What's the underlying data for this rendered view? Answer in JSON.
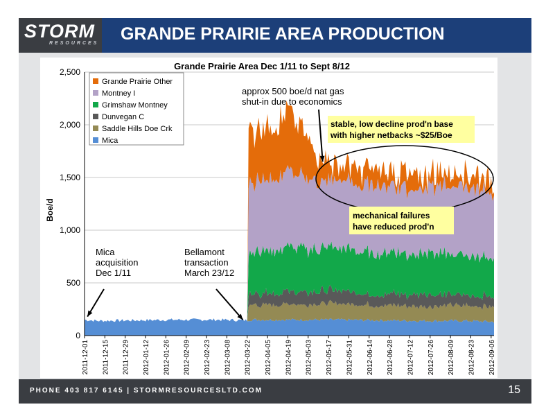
{
  "header": {
    "logo_text": "STORM",
    "logo_sub": "RESOURCES",
    "title": "GRANDE PRAIRIE AREA PRODUCTION"
  },
  "footer": {
    "text": "PHONE 403 817 6145   |   STORMRESOURCESLTD.COM",
    "page_number": "15"
  },
  "colors": {
    "title_bar": "#1c3f79",
    "dark_bar": "#3a3d42",
    "Grande Prairie Other": "#e46c0a",
    "Montney I": "#b3a2c7",
    "Grimshaw Montney": "#12a84a",
    "Dunvegan C": "#595959",
    "Saddle Hills Doe Crk": "#948a54",
    "Mica": "#558ed5"
  },
  "chart_data": {
    "type": "area",
    "stacked": true,
    "title": "Grande Prairie Area Dec 1/11 to Sept 8/12",
    "ylabel": "Boe/d",
    "xlabel": "",
    "ylim": [
      0,
      2500
    ],
    "yticks": [
      "0",
      "500",
      "1,000",
      "1,500",
      "2,000",
      "2,500"
    ],
    "xtick_labels": [
      "2011-12-01",
      "2011-12-15",
      "2011-12-29",
      "2012-01-12",
      "2012-01-26",
      "2012-02-09",
      "2012-02-23",
      "2012-03-08",
      "2012-03-22",
      "2012-04-05",
      "2012-04-19",
      "2012-05-03",
      "2012-05-17",
      "2012-05-31",
      "2012-06-14",
      "2012-06-28",
      "2012-07-12",
      "2012-07-26",
      "2012-08-09",
      "2012-08-23",
      "2012-09-06"
    ],
    "x_range": [
      "2011-12-01",
      "2012-09-08"
    ],
    "legend": [
      "Grande Prairie Other",
      "Montney I",
      "Grimshaw Montney",
      "Dunvegan C",
      "Saddle Hills Doe Crk",
      "Mica"
    ],
    "legend_position": "top-left",
    "grid": "horizontal",
    "series": [
      {
        "name": "Mica",
        "x": [
          "2011-12-01",
          "2011-12-10",
          "2012-01-05",
          "2012-02-01",
          "2012-03-01",
          "2012-03-22",
          "2012-03-23",
          "2012-04-20",
          "2012-05-20",
          "2012-06-20",
          "2012-07-20",
          "2012-08-20",
          "2012-09-08"
        ],
        "values": [
          150,
          140,
          145,
          150,
          150,
          145,
          150,
          150,
          150,
          145,
          140,
          140,
          130
        ]
      },
      {
        "name": "Saddle Hills Doe Crk",
        "x": [
          "2011-12-01",
          "2012-03-22",
          "2012-03-23",
          "2012-04-20",
          "2012-05-20",
          "2012-06-20",
          "2012-07-20",
          "2012-08-20",
          "2012-09-08"
        ],
        "values": [
          0,
          0,
          140,
          150,
          150,
          145,
          140,
          145,
          140
        ]
      },
      {
        "name": "Dunvegan C",
        "x": [
          "2011-12-01",
          "2012-03-22",
          "2012-03-23",
          "2012-04-20",
          "2012-05-20",
          "2012-06-20",
          "2012-07-20",
          "2012-08-20",
          "2012-09-08"
        ],
        "values": [
          0,
          0,
          110,
          120,
          120,
          110,
          110,
          100,
          100
        ]
      },
      {
        "name": "Grimshaw Montney",
        "x": [
          "2011-12-01",
          "2012-03-22",
          "2012-03-23",
          "2012-04-20",
          "2012-05-20",
          "2012-06-20",
          "2012-07-20",
          "2012-08-20",
          "2012-09-08"
        ],
        "values": [
          0,
          0,
          400,
          420,
          400,
          400,
          390,
          380,
          370
        ]
      },
      {
        "name": "Montney I",
        "x": [
          "2011-12-01",
          "2012-03-22",
          "2012-03-23",
          "2012-04-20",
          "2012-05-20",
          "2012-06-20",
          "2012-07-20",
          "2012-08-20",
          "2012-09-08"
        ],
        "values": [
          0,
          0,
          650,
          700,
          630,
          640,
          620,
          650,
          620
        ]
      },
      {
        "name": "Grande Prairie Other",
        "x": [
          "2011-12-01",
          "2012-03-22",
          "2012-03-23",
          "2012-04-20",
          "2012-05-20",
          "2012-06-20",
          "2012-07-20",
          "2012-08-20",
          "2012-09-08"
        ],
        "values": [
          0,
          0,
          500,
          550,
          140,
          150,
          120,
          140,
          130
        ]
      }
    ],
    "annotations": [
      {
        "text": "Mica\nacquisition\nDec 1/11",
        "arrow_to": [
          "2011-12-03",
          180
        ]
      },
      {
        "text": "Bellamont\ntransaction\nMarch 23/12",
        "arrow_to": [
          "2012-03-20",
          150
        ]
      },
      {
        "text": "approx 500 boe/d nat gas\nshut-in due to economics",
        "arrow_to": [
          "2012-05-13",
          1650
        ]
      },
      {
        "text": "stable, low decline prod'n base\nwith higher netbacks ~$25/Boe"
      },
      {
        "text": "mechanical failures\nhave reduced prod'n"
      }
    ]
  }
}
